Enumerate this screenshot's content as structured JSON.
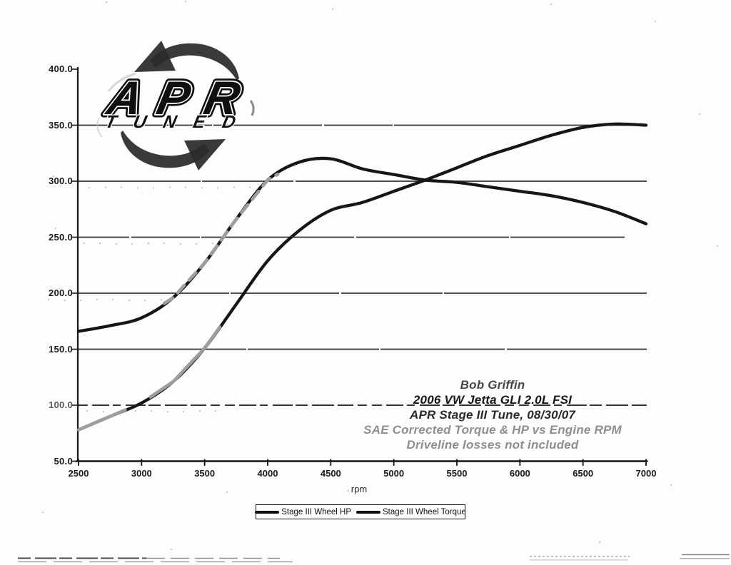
{
  "chart_data": {
    "type": "line",
    "x": [
      2500,
      2750,
      3000,
      3250,
      3500,
      3750,
      4000,
      4250,
      4500,
      4750,
      5000,
      5250,
      5500,
      5750,
      6000,
      6250,
      6500,
      6750,
      7000
    ],
    "series": [
      {
        "name": "Stage III Wheel HP",
        "values": [
          78,
          90,
          102,
          121,
          151,
          190,
          229,
          256,
          274,
          281,
          291,
          301,
          312,
          323,
          332,
          341,
          348,
          351,
          350
        ]
      },
      {
        "name": "Stage III Wheel Torque",
        "values": [
          166,
          171,
          178,
          196,
          227,
          266,
          301,
          317,
          320,
          311,
          306,
          301,
          299,
          295,
          291,
          287,
          281,
          273,
          262
        ]
      }
    ],
    "xlabel": "rpm",
    "ylabel": "",
    "xlim": [
      2500,
      7000
    ],
    "ylim": [
      50,
      400
    ],
    "x_tick_step": 500,
    "y_tick_step": 50,
    "y_tick_labels": [
      "400.0",
      "350.0",
      "300.0",
      "250.0",
      "200.0",
      "150.0",
      "100.0",
      "50.0"
    ],
    "x_tick_labels": [
      "2500",
      "3000",
      "3500",
      "4000",
      "4500",
      "5000",
      "5500",
      "6000",
      "6500",
      "7000"
    ],
    "grid": "horizontal",
    "legend_position": "bottom"
  },
  "axis": {
    "x_title": "rpm"
  },
  "legend": {
    "items": [
      {
        "label": "Stage III Wheel HP"
      },
      {
        "label": "Stage III Wheel Torque"
      }
    ]
  },
  "annotation": {
    "lines": [
      {
        "text": "Bob Griffin",
        "tone": "dark"
      },
      {
        "text": "2006 VW Jetta GLI 2.0L FSI",
        "tone": "black"
      },
      {
        "text": "APR Stage III Tune, 08/30/07",
        "tone": "black2"
      },
      {
        "text": "SAE Corrected Torque & HP vs Engine RPM",
        "tone": "gray"
      },
      {
        "text": "Driveline losses not included",
        "tone": "gray"
      }
    ]
  },
  "logo": {
    "brand": "APR",
    "word": "TUNED"
  },
  "colors": {
    "curve": "#161616",
    "scan_gray": "#9e9e9e",
    "grid": "#222222",
    "text": "#1b1b1b",
    "muted_text": "#8f8f8f",
    "background": "#fdfdfc"
  }
}
